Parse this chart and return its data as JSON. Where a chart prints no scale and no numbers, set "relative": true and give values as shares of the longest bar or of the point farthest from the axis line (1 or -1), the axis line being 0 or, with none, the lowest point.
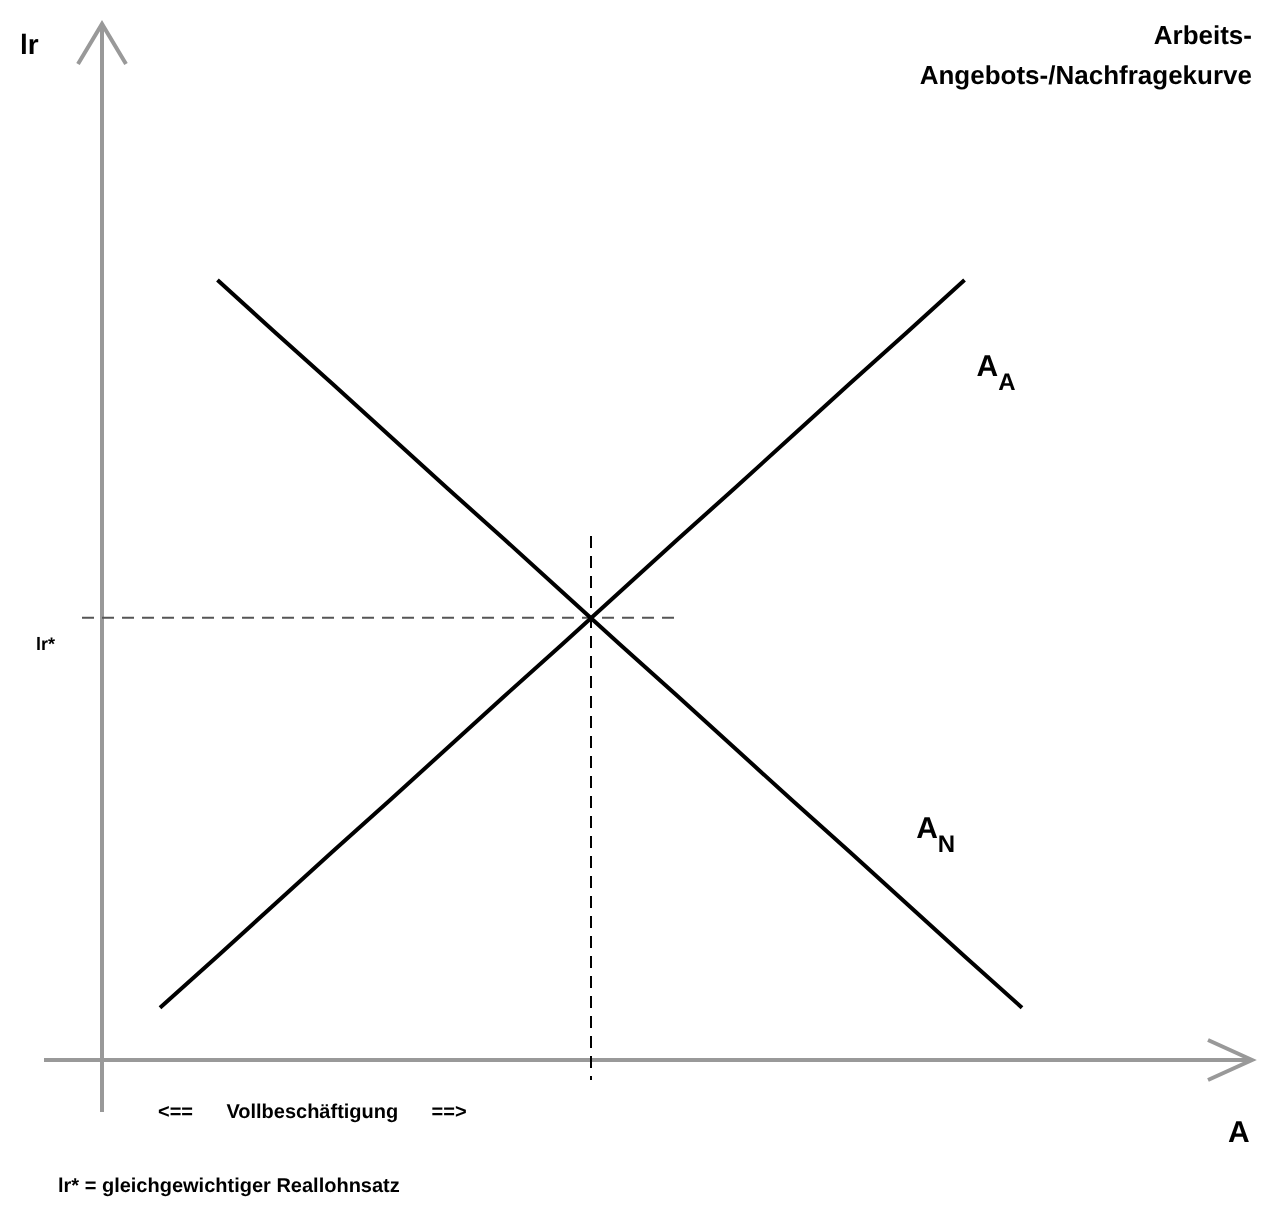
{
  "chart_data": {
    "type": "line",
    "title": "Arbeits- Angebots-/Nachfragekurve",
    "relative": true,
    "categories": [
      null,
      null,
      null,
      null,
      null,
      null,
      null,
      null,
      null,
      null,
      null,
      null,
      null,
      null,
      null,
      null
    ],
    "series": [
      {
        "name": "A$_{A}$",
        "color": "#000000",
        "values": [
          0.067,
          0.133,
          0.2,
          0.267,
          0.333,
          0.4,
          0.467,
          0.533,
          0.6,
          0.667,
          0.733,
          0.8,
          0.867,
          0.933,
          1,
          null
        ]
      },
      {
        "name": "A$_{N}$",
        "color": "#000000",
        "values": [
          null,
          1,
          0.933,
          0.867,
          0.8,
          0.733,
          0.667,
          0.6,
          0.533,
          0.467,
          0.4,
          0.333,
          0.267,
          0.2,
          0.133,
          0.067
        ]
      }
    ],
    "ref_lines": [
      {
        "axis": "y",
        "value": 0.567,
        "label": "lr*",
        "line_style": "dashed",
        "color": "#555555"
      }
    ],
    "annotations": [
      "lr",
      "A",
      "<==      Vollbeschäftigung      ==>",
      "lr* = gleichgewichtiger Reallohnsatz"
    ]
  }
}
